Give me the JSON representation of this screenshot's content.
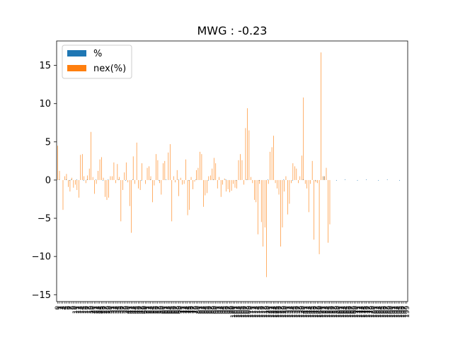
{
  "chart_data": {
    "type": "bar",
    "title": "MWG : -0.23",
    "xlabel": "",
    "ylabel": "",
    "ylim": [
      -15.9,
      18.2
    ],
    "yticks": [
      -15,
      -10,
      -5,
      0,
      5,
      10,
      15
    ],
    "legend": {
      "position": "top-left"
    },
    "categories_count": 200,
    "series": [
      {
        "name": "%",
        "color": "#1f77b4",
        "values": [
          0.0,
          0.1,
          0.0,
          0.0,
          0.0,
          0.1,
          0.0,
          -0.1,
          0.1,
          0.0,
          0.0,
          0.1,
          0.0,
          0.0,
          0.0,
          -0.1,
          0.0,
          0.1,
          0.0,
          0.0,
          0.0,
          0.0,
          0.1,
          0.0,
          0.0,
          0.0,
          -0.1,
          0.0,
          0.0,
          0.1,
          0.0,
          0.0,
          0.0,
          0.0,
          0.0,
          0.1,
          0.0,
          0.0,
          0.0,
          -0.1,
          0.0,
          0.0,
          0.0,
          0.1,
          0.0,
          0.0,
          0.0,
          0.0,
          -0.1,
          0.0,
          0.0,
          0.0,
          0.0,
          0.1,
          0.0,
          0.0,
          0.0,
          0.0,
          -0.1,
          0.0,
          0.0,
          0.0,
          0.1,
          0.0,
          0.0,
          0.0,
          0.0,
          0.0,
          0.0,
          0.1,
          0.0,
          0.0,
          0.0,
          0.0,
          0.0,
          -0.1,
          0.0,
          0.0,
          0.0,
          0.1,
          0.0,
          0.0,
          0.0,
          0.0,
          0.0,
          0.0,
          -0.1,
          0.0,
          0.0,
          0.1,
          0.0,
          0.0,
          0.0,
          0.0,
          0.0,
          0.0,
          0.1,
          0.0,
          0.0,
          0.0,
          0.0,
          0.0,
          -0.1,
          0.0,
          0.0,
          0.0,
          0.0,
          0.0,
          0.1,
          0.0,
          0.0,
          0.0,
          0.0,
          0.0,
          0.0,
          -0.1,
          0.0,
          0.0,
          0.0,
          0.0,
          0.1,
          0.0,
          0.0,
          0.0,
          0.0,
          0.0,
          0.0,
          0.0,
          0.0,
          0.1,
          0.0,
          0.0,
          0.0,
          0.0,
          -0.1,
          0.0,
          0.0,
          0.0,
          0.0,
          0.0,
          0.1,
          0.0,
          0.0,
          0.0,
          0.0,
          0.0,
          0.0,
          -0.1,
          0.0,
          0.0,
          0.0,
          0.0,
          0.5,
          0.0,
          0.0,
          0.0,
          0.0,
          0.0,
          0.0,
          -0.1,
          0.0,
          0.0,
          0.0,
          0.0,
          0.1,
          0.0,
          0.0,
          0.0,
          0.0,
          0.0,
          0.0,
          -0.1,
          0.0,
          0.0,
          0.0,
          0.0,
          0.1,
          0.0,
          0.0,
          0.0,
          0.0,
          0.0,
          0.0,
          -0.1,
          0.0,
          0.0,
          0.0,
          0.0,
          0.1,
          0.0,
          0.0,
          0.0,
          0.0,
          0.0,
          0.0,
          -0.1,
          0.0,
          0.0,
          0.0,
          0.0
        ]
      },
      {
        "name": "nex(%)",
        "color": "#ff7f0e",
        "values": [
          4.5,
          1.2,
          0.0,
          -3.9,
          0.5,
          0.8,
          -0.9,
          -1.5,
          0.3,
          -1.0,
          -0.6,
          -1.3,
          -2.3,
          3.3,
          3.4,
          0.5,
          -0.4,
          0.6,
          1.5,
          6.3,
          0.4,
          -1.8,
          -0.5,
          1.2,
          2.7,
          3.0,
          0.3,
          -2.2,
          -2.6,
          -2.3,
          0.5,
          0.5,
          2.3,
          -0.4,
          2.1,
          0.4,
          -5.4,
          -1.3,
          1.0,
          2.3,
          -0.3,
          -3.4,
          -6.9,
          3.1,
          -0.5,
          4.9,
          -1.1,
          -1.3,
          2.2,
          0.0,
          -0.5,
          1.6,
          1.8,
          0.5,
          -2.9,
          -0.7,
          3.4,
          2.6,
          -0.4,
          -1.9,
          2.2,
          2.5,
          0.0,
          3.6,
          4.7,
          -5.4,
          0.5,
          -0.3,
          1.3,
          -2.1,
          0.3,
          -0.6,
          -0.5,
          2.7,
          -4.6,
          -3.9,
          0.4,
          -1.2,
          -0.2,
          1.3,
          1.6,
          3.7,
          3.4,
          -3.5,
          -2.0,
          -1.7,
          0.5,
          0.6,
          1.5,
          2.9,
          2.2,
          -1.1,
          0.4,
          -2.2,
          -0.6,
          0.2,
          -1.5,
          -1.2,
          -1.6,
          -1.4,
          -0.5,
          -1.0,
          -1.1,
          2.6,
          3.4,
          2.6,
          -0.6,
          6.8,
          9.4,
          6.5,
          0.4,
          -0.4,
          -2.6,
          -2.9,
          -7.1,
          -0.5,
          -5.5,
          -8.7,
          -6.2,
          -12.7,
          -0.5,
          3.7,
          4.3,
          5.8,
          -0.4,
          -1.1,
          -1.9,
          -8.7,
          -6.2,
          -1.5,
          0.5,
          -4.5,
          -3.1,
          -0.4,
          2.2,
          1.8,
          1.5,
          -0.4,
          0.5,
          3.2,
          10.8,
          -0.5,
          -1.1,
          -4.2,
          -0.5,
          2.5,
          -7.8,
          -0.3,
          -0.4,
          -9.7,
          16.7,
          0.5,
          0.5,
          1.6,
          -8.2,
          -5.8,
          0.0,
          0.0,
          0.0,
          0.0,
          0.0,
          0.0,
          0.0,
          0.0,
          0.0,
          0.0,
          0.0,
          0.0,
          0.0,
          0.0,
          0.0,
          0.0,
          0.0,
          0.0,
          0.0,
          0.0,
          0.0,
          0.0,
          0.0,
          0.0,
          0.0,
          0.0,
          0.0,
          0.0,
          0.0,
          0.0,
          0.0,
          0.0,
          0.0,
          0.0,
          0.0,
          0.0,
          0.0,
          0.0,
          0.0,
          0.0,
          0.0,
          0.0,
          0.0,
          0.0,
          0.0,
          0.0,
          0.0,
          0.0,
          0.0,
          0.0
        ]
      }
    ]
  }
}
